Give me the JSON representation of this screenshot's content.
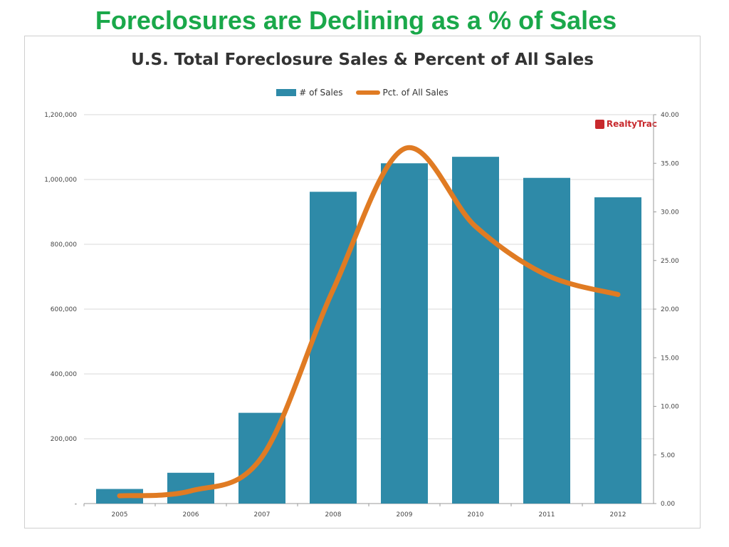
{
  "slide": {
    "title": "Foreclosures are Declining as a % of Sales"
  },
  "logo": {
    "text": "RealtyTrac"
  },
  "colors": {
    "bar": "#2e8aa8",
    "line": "#e07b23",
    "title": "#1aa84a",
    "grid": "#d9d9d9"
  },
  "chart_data": {
    "type": "bar",
    "title": "U.S. Total Foreclosure Sales & Percent of All Sales",
    "categories": [
      "2005",
      "2006",
      "2007",
      "2008",
      "2009",
      "2010",
      "2011",
      "2012"
    ],
    "series": [
      {
        "name": "# of Sales",
        "type": "bar",
        "axis": "left",
        "values": [
          45000,
          95000,
          280000,
          962000,
          1050000,
          1070000,
          1005000,
          945000
        ]
      },
      {
        "name": "Pct. of All Sales",
        "type": "line",
        "axis": "right",
        "values": [
          0.8,
          1.3,
          4.8,
          22.0,
          36.5,
          28.5,
          23.5,
          21.5
        ]
      }
    ],
    "y_left": {
      "min": 0,
      "max": 1200000,
      "ticks": [
        "-",
        "200,000",
        "400,000",
        "600,000",
        "800,000",
        "1,000,000",
        "1,200,000"
      ]
    },
    "y_right": {
      "min": 0,
      "max": 40,
      "ticks": [
        "0.00",
        "5.00",
        "10.00",
        "15.00",
        "20.00",
        "25.00",
        "30.00",
        "35.00",
        "40.00"
      ]
    },
    "grid": true,
    "legend_position": "top"
  }
}
